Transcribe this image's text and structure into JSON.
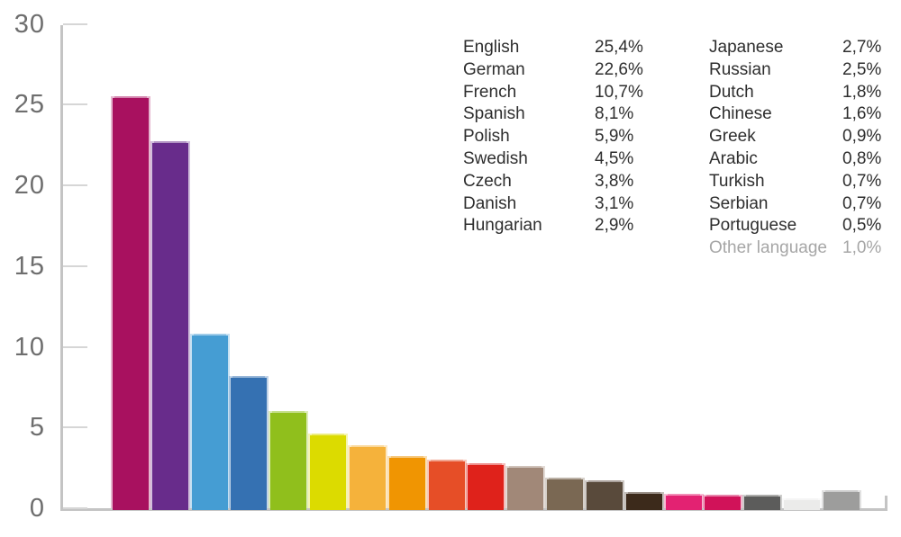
{
  "chart_data": {
    "type": "bar",
    "title": "",
    "xlabel": "",
    "ylabel": "",
    "ylim": [
      0,
      30
    ],
    "yticks": [
      0,
      5,
      10,
      15,
      20,
      25,
      30
    ],
    "grid": false,
    "legend_position": "top-right",
    "categories": [
      "English",
      "German",
      "French",
      "Spanish",
      "Polish",
      "Swedish",
      "Czech",
      "Danish",
      "Hungarian",
      "Japanese",
      "Russian",
      "Dutch",
      "Chinese",
      "Greek",
      "Arabic",
      "Turkish",
      "Serbian",
      "Portuguese",
      "Other language"
    ],
    "values": [
      25.4,
      22.6,
      10.7,
      8.1,
      5.9,
      4.5,
      3.8,
      3.1,
      2.9,
      2.7,
      2.5,
      1.8,
      1.6,
      0.9,
      0.8,
      0.7,
      0.7,
      0.5,
      1.0
    ],
    "value_labels": [
      "25,4%",
      "22,6%",
      "10,7%",
      "8,1%",
      "5,9%",
      "4,5%",
      "3,8%",
      "3,1%",
      "2,9%",
      "2,7%",
      "2,5%",
      "1,8%",
      "1,6%",
      "0,9%",
      "0,8%",
      "0,7%",
      "0,7%",
      "0,5%",
      "1,0%"
    ],
    "colors": [
      "#A8115F",
      "#682C8B",
      "#459DD3",
      "#3571B2",
      "#90BF1C",
      "#DCDB00",
      "#F5B23B",
      "#F09502",
      "#E64E27",
      "#DF221B",
      "#A18878",
      "#7A6853",
      "#594A3B",
      "#3C2A1B",
      "#E32272",
      "#D11259",
      "#5C5C5B",
      "#EBEBEA",
      "#9D9D9C"
    ]
  },
  "legend": {
    "column1": [
      {
        "name": "English",
        "value": "25,4%"
      },
      {
        "name": "German",
        "value": "22,6%"
      },
      {
        "name": "French",
        "value": "10,7%"
      },
      {
        "name": "Spanish",
        "value": "8,1%"
      },
      {
        "name": "Polish",
        "value": "5,9%"
      },
      {
        "name": "Swedish",
        "value": "4,5%"
      },
      {
        "name": "Czech",
        "value": "3,8%"
      },
      {
        "name": "Danish",
        "value": "3,1%"
      },
      {
        "name": "Hungarian",
        "value": "2,9%"
      }
    ],
    "column2": [
      {
        "name": "Japanese",
        "value": "2,7%"
      },
      {
        "name": "Russian",
        "value": "2,5%"
      },
      {
        "name": "Dutch",
        "value": "1,8%"
      },
      {
        "name": "Chinese",
        "value": "1,6%"
      },
      {
        "name": "Greek",
        "value": "0,9%"
      },
      {
        "name": "Arabic",
        "value": "0,8%"
      },
      {
        "name": "Turkish",
        "value": "0,7%"
      },
      {
        "name": "Serbian",
        "value": "0,7%"
      },
      {
        "name": "Portuguese",
        "value": "0,5%"
      },
      {
        "name": "Other language",
        "value": "1,0%",
        "muted": true
      }
    ]
  },
  "style_colors": {
    "axis": "#c4c4c4",
    "tick": "#d6d6d6",
    "axis_label": "#6e6e6e",
    "legend_text": "#2e2e2e",
    "legend_muted": "#a6a6a6",
    "background": "#ffffff"
  }
}
